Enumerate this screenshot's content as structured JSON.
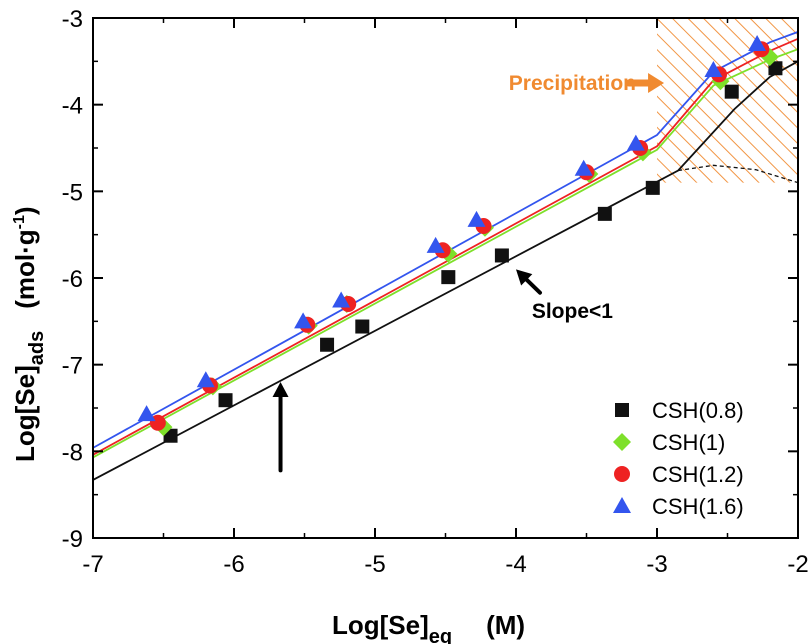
{
  "chart_data": {
    "type": "scatter",
    "xlim": [
      -7,
      -2
    ],
    "ylim": [
      -9,
      -3
    ],
    "xticks": [
      -7,
      -6,
      -5,
      -4,
      -3,
      -2
    ],
    "yticks": [
      -9,
      -8,
      -7,
      -6,
      -5,
      -4,
      -3
    ],
    "xlabel": {
      "main": "Log[Se]",
      "sub": "eq",
      "unit": "(M)"
    },
    "ylabel": {
      "main": "Log[Se]",
      "sub": "ads",
      "unit_pre": "(mol·g",
      "unit_sup": "-1",
      "unit_post": ")"
    },
    "series": [
      {
        "name": "CSH(0.8)",
        "marker": "square",
        "color": "#111111",
        "x": [
          -6.45,
          -6.06,
          -5.34,
          -5.09,
          -4.48,
          -4.1,
          -3.37,
          -3.03,
          -2.47,
          -2.16
        ],
        "y": [
          -7.82,
          -7.41,
          -6.77,
          -6.56,
          -5.99,
          -5.74,
          -5.26,
          -4.96,
          -3.85,
          -3.58
        ]
      },
      {
        "name": "CSH(1)",
        "marker": "diamond",
        "color": "#7ee02a",
        "x": [
          -6.5,
          -6.15,
          -5.47,
          -5.2,
          -4.48,
          -4.22,
          -3.48,
          -3.1,
          -2.55,
          -2.2
        ],
        "y": [
          -7.72,
          -7.25,
          -6.55,
          -6.3,
          -5.72,
          -5.42,
          -4.8,
          -4.55,
          -3.73,
          -3.45
        ]
      },
      {
        "name": "CSH(1.2)",
        "marker": "circle",
        "color": "#ee2222",
        "x": [
          -6.54,
          -6.17,
          -5.48,
          -5.19,
          -4.52,
          -4.23,
          -3.5,
          -3.12,
          -2.56,
          -2.26
        ],
        "y": [
          -7.67,
          -7.24,
          -6.54,
          -6.3,
          -5.68,
          -5.4,
          -4.78,
          -4.5,
          -3.65,
          -3.36
        ]
      },
      {
        "name": "CSH(1.6)",
        "marker": "triangle",
        "color": "#3355ee",
        "x": [
          -6.62,
          -6.2,
          -5.51,
          -5.24,
          -4.57,
          -4.28,
          -3.52,
          -3.15,
          -2.6,
          -2.29
        ],
        "y": [
          -7.57,
          -7.18,
          -6.5,
          -6.26,
          -5.63,
          -5.33,
          -4.74,
          -4.45,
          -3.6,
          -3.3
        ]
      }
    ],
    "fit_lines": [
      {
        "name": "CSH(0.8) fit",
        "color": "#111111",
        "dashed": false,
        "x": [
          -7,
          -2.85,
          -2.45,
          -2.2,
          -2
        ],
        "y": [
          -8.33,
          -4.76,
          -4.05,
          -3.68,
          -3.5
        ]
      },
      {
        "name": "CSH(0.8) fit extension",
        "color": "#111111",
        "dashed": true,
        "x": [
          -2.85,
          -2.6,
          -2.3,
          -2
        ],
        "y": [
          -4.76,
          -4.7,
          -4.75,
          -4.9
        ]
      },
      {
        "name": "CSH(1) fit",
        "color": "#7ee02a",
        "dashed": false,
        "x": [
          -7,
          -3,
          -2.6,
          -2.2,
          -2
        ],
        "y": [
          -8.07,
          -4.52,
          -3.78,
          -3.48,
          -3.36
        ]
      },
      {
        "name": "CSH(1.2) fit",
        "color": "#ee2222",
        "dashed": false,
        "x": [
          -7,
          -3,
          -2.6,
          -2.2,
          -2
        ],
        "y": [
          -8.04,
          -4.48,
          -3.72,
          -3.38,
          -3.24
        ]
      },
      {
        "name": "CSH(1.6) fit",
        "color": "#3355ee",
        "dashed": false,
        "x": [
          -7,
          -3,
          -2.6,
          -2.2,
          -2
        ],
        "y": [
          -7.96,
          -4.35,
          -3.62,
          -3.28,
          -3.16
        ]
      }
    ],
    "precipitation_region": {
      "x": [
        -3,
        -2
      ],
      "y": [
        -4.9,
        -3
      ],
      "color": "#f08a30"
    },
    "annotations": [
      {
        "text": "Precipitation",
        "color": "#f08a30",
        "x": -3.6,
        "y": -3.75
      },
      {
        "text": "Slope<1",
        "color": "#000000",
        "x": -3.6,
        "y": -6.38
      }
    ],
    "arrows": [
      {
        "name": "precipitation-arrow",
        "color": "#f08a30",
        "from": [
          -3.2,
          -3.75
        ],
        "to": [
          -2.95,
          -3.75
        ]
      },
      {
        "name": "slope-arrow",
        "color": "#000000",
        "from": [
          -3.83,
          -6.17
        ],
        "to": [
          -4.0,
          -5.9
        ]
      },
      {
        "name": "vertical-arrow",
        "color": "#000000",
        "from": [
          -5.67,
          -8.22
        ],
        "to": [
          -5.67,
          -7.2
        ]
      }
    ]
  }
}
